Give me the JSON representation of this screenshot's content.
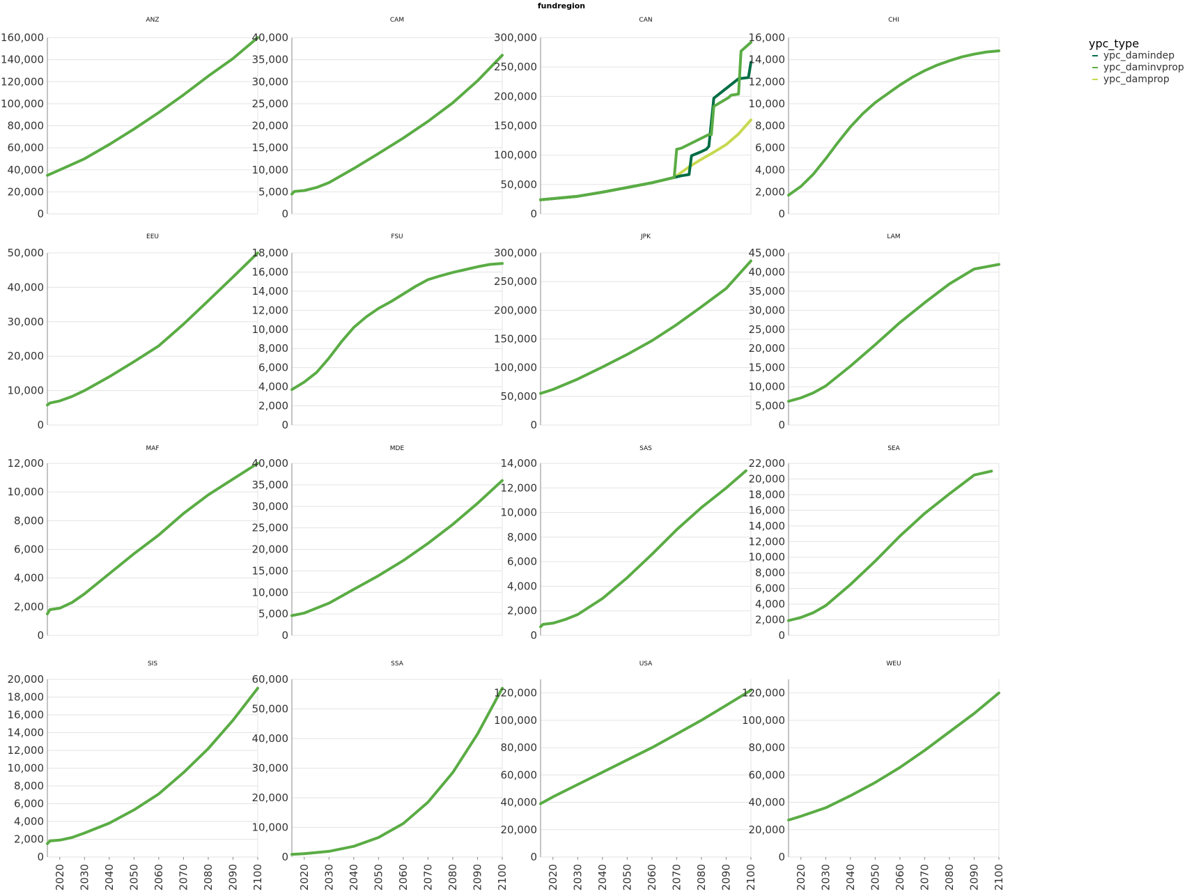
{
  "main_title": "fundregion",
  "legend": {
    "title": "ypc_type",
    "entries": [
      {
        "label": "ypc_damindep",
        "color": "#006d44"
      },
      {
        "label": "ypc_daminvprop",
        "color": "#5aac44"
      },
      {
        "label": "ypc_damprop",
        "color": "#c7d94f"
      }
    ]
  },
  "chart_data": [
    {
      "type": "line",
      "title": "ANZ",
      "x_ticks": [
        2020,
        2030,
        2040,
        2050,
        2060,
        2070,
        2080,
        2090,
        2100
      ],
      "xlim": [
        2015,
        2100
      ],
      "y_ticks": [
        0,
        20000,
        40000,
        60000,
        80000,
        100000,
        120000,
        140000,
        160000
      ],
      "ylim": [
        0,
        160000
      ],
      "series": [
        {
          "name": "ypc_daminvprop",
          "x": [
            2015,
            2020,
            2030,
            2040,
            2050,
            2060,
            2070,
            2080,
            2090,
            2100
          ],
          "y": [
            35000,
            40000,
            50000,
            63000,
            77000,
            92000,
            108000,
            125000,
            141000,
            160000
          ]
        }
      ]
    },
    {
      "type": "line",
      "title": "CAM",
      "x_ticks": [
        2020,
        2030,
        2040,
        2050,
        2060,
        2070,
        2080,
        2090,
        2100
      ],
      "xlim": [
        2015,
        2100
      ],
      "y_ticks": [
        0,
        5000,
        10000,
        15000,
        20000,
        25000,
        30000,
        35000,
        40000
      ],
      "ylim": [
        0,
        40000
      ],
      "series": [
        {
          "name": "ypc_daminvprop",
          "x": [
            2015,
            2016,
            2020,
            2025,
            2030,
            2040,
            2050,
            2060,
            2070,
            2080,
            2090,
            2100
          ],
          "y": [
            4500,
            5100,
            5300,
            6000,
            7100,
            10300,
            13700,
            17200,
            21000,
            25200,
            30200,
            36000
          ]
        }
      ]
    },
    {
      "type": "line",
      "title": "CAN",
      "x_ticks": [
        2020,
        2030,
        2040,
        2050,
        2060,
        2070,
        2080,
        2090,
        2100
      ],
      "xlim": [
        2015,
        2100
      ],
      "y_ticks": [
        0,
        50000,
        100000,
        150000,
        200000,
        250000,
        300000
      ],
      "ylim": [
        0,
        300000
      ],
      "series": [
        {
          "name": "ypc_damprop",
          "x": [
            2015,
            2030,
            2040,
            2050,
            2060,
            2069,
            2075,
            2080,
            2085,
            2090,
            2095,
            2100
          ],
          "y": [
            24000,
            30000,
            37000,
            45000,
            53000,
            62000,
            80000,
            93000,
            105000,
            118000,
            136000,
            160000
          ]
        },
        {
          "name": "ypc_damindep",
          "x": [
            2015,
            2030,
            2040,
            2050,
            2060,
            2069,
            2070,
            2071,
            2072,
            2075,
            2076,
            2080,
            2082,
            2083,
            2085,
            2095,
            2099,
            2100
          ],
          "y": [
            24000,
            30000,
            37000,
            45000,
            53000,
            62000,
            63000,
            64000,
            65000,
            67000,
            99000,
            106000,
            110000,
            115000,
            197000,
            230000,
            232000,
            258000
          ]
        },
        {
          "name": "ypc_daminvprop",
          "x": [
            2015,
            2030,
            2040,
            2050,
            2060,
            2069,
            2070,
            2071,
            2072,
            2083,
            2084,
            2085,
            2091,
            2092,
            2095,
            2096,
            2100
          ],
          "y": [
            24000,
            30000,
            37000,
            45000,
            53000,
            62000,
            110000,
            111000,
            112000,
            135000,
            135000,
            183000,
            198000,
            202000,
            204000,
            277000,
            292000
          ]
        }
      ]
    },
    {
      "type": "line",
      "title": "CHI",
      "x_ticks": [
        2020,
        2030,
        2040,
        2050,
        2060,
        2070,
        2080,
        2090,
        2100
      ],
      "xlim": [
        2015,
        2100
      ],
      "y_ticks": [
        0,
        2000,
        4000,
        6000,
        8000,
        10000,
        12000,
        14000,
        16000
      ],
      "ylim": [
        0,
        16000
      ],
      "series": [
        {
          "name": "ypc_daminvprop",
          "x": [
            2015,
            2020,
            2025,
            2030,
            2035,
            2040,
            2045,
            2050,
            2055,
            2060,
            2065,
            2070,
            2075,
            2080,
            2085,
            2090,
            2095,
            2100
          ],
          "y": [
            1700,
            2500,
            3600,
            5000,
            6500,
            7900,
            9100,
            10100,
            10900,
            11700,
            12400,
            13000,
            13500,
            13900,
            14250,
            14500,
            14700,
            14800
          ]
        }
      ]
    },
    {
      "type": "line",
      "title": "EEU",
      "x_ticks": [
        2020,
        2030,
        2040,
        2050,
        2060,
        2070,
        2080,
        2090,
        2100
      ],
      "xlim": [
        2015,
        2100
      ],
      "y_ticks": [
        0,
        10000,
        20000,
        30000,
        40000,
        50000
      ],
      "ylim": [
        0,
        50000
      ],
      "series": [
        {
          "name": "ypc_daminvprop",
          "x": [
            2015,
            2016,
            2020,
            2025,
            2030,
            2040,
            2050,
            2060,
            2070,
            2080,
            2090,
            2100
          ],
          "y": [
            5800,
            6400,
            7000,
            8300,
            10000,
            14000,
            18400,
            23000,
            29300,
            36100,
            43000,
            50000
          ]
        }
      ]
    },
    {
      "type": "line",
      "title": "FSU",
      "x_ticks": [
        2020,
        2030,
        2040,
        2050,
        2060,
        2070,
        2080,
        2090,
        2100
      ],
      "xlim": [
        2015,
        2100
      ],
      "y_ticks": [
        0,
        2000,
        4000,
        6000,
        8000,
        10000,
        12000,
        14000,
        16000,
        18000
      ],
      "ylim": [
        0,
        18000
      ],
      "series": [
        {
          "name": "ypc_daminvprop",
          "x": [
            2015,
            2020,
            2025,
            2030,
            2035,
            2040,
            2045,
            2050,
            2055,
            2060,
            2065,
            2070,
            2075,
            2080,
            2085,
            2090,
            2095,
            2100
          ],
          "y": [
            3700,
            4500,
            5500,
            7000,
            8700,
            10200,
            11300,
            12200,
            12900,
            13700,
            14500,
            15200,
            15600,
            15950,
            16250,
            16550,
            16800,
            16900
          ]
        }
      ]
    },
    {
      "type": "line",
      "title": "JPK",
      "x_ticks": [
        2020,
        2030,
        2040,
        2050,
        2060,
        2070,
        2080,
        2090,
        2100
      ],
      "xlim": [
        2015,
        2100
      ],
      "y_ticks": [
        0,
        50000,
        100000,
        150000,
        200000,
        250000,
        300000
      ],
      "ylim": [
        0,
        300000
      ],
      "series": [
        {
          "name": "ypc_daminvprop",
          "x": [
            2015,
            2020,
            2030,
            2040,
            2050,
            2060,
            2070,
            2080,
            2090,
            2100
          ],
          "y": [
            55000,
            62000,
            80000,
            101000,
            123000,
            147000,
            175000,
            206000,
            238000,
            286000
          ]
        }
      ]
    },
    {
      "type": "line",
      "title": "LAM",
      "x_ticks": [
        2020,
        2030,
        2040,
        2050,
        2060,
        2070,
        2080,
        2090,
        2100
      ],
      "xlim": [
        2015,
        2100
      ],
      "y_ticks": [
        0,
        5000,
        10000,
        15000,
        20000,
        25000,
        30000,
        35000,
        40000,
        45000
      ],
      "ylim": [
        0,
        45000
      ],
      "series": [
        {
          "name": "ypc_daminvprop",
          "x": [
            2015,
            2020,
            2025,
            2030,
            2040,
            2050,
            2060,
            2070,
            2080,
            2090,
            2100
          ],
          "y": [
            6200,
            7100,
            8400,
            10200,
            15400,
            21000,
            26800,
            32000,
            36900,
            40800,
            42000
          ]
        }
      ]
    },
    {
      "type": "line",
      "title": "MAF",
      "x_ticks": [
        2020,
        2030,
        2040,
        2050,
        2060,
        2070,
        2080,
        2090,
        2100
      ],
      "xlim": [
        2015,
        2100
      ],
      "y_ticks": [
        0,
        2000,
        4000,
        6000,
        8000,
        10000,
        12000
      ],
      "ylim": [
        0,
        12000
      ],
      "series": [
        {
          "name": "ypc_daminvprop",
          "x": [
            2015,
            2016,
            2020,
            2025,
            2030,
            2040,
            2050,
            2060,
            2070,
            2080,
            2090,
            2100
          ],
          "y": [
            1500,
            1800,
            1900,
            2300,
            2900,
            4300,
            5700,
            7000,
            8500,
            9800,
            10900,
            12000
          ]
        }
      ]
    },
    {
      "type": "line",
      "title": "MDE",
      "x_ticks": [
        2020,
        2030,
        2040,
        2050,
        2060,
        2070,
        2080,
        2090,
        2100
      ],
      "xlim": [
        2015,
        2100
      ],
      "y_ticks": [
        0,
        5000,
        10000,
        15000,
        20000,
        25000,
        30000,
        35000,
        40000
      ],
      "ylim": [
        0,
        40000
      ],
      "series": [
        {
          "name": "ypc_daminvprop",
          "x": [
            2015,
            2020,
            2030,
            2040,
            2050,
            2060,
            2070,
            2080,
            2090,
            2100
          ],
          "y": [
            4600,
            5200,
            7500,
            10700,
            13900,
            17400,
            21400,
            25800,
            30700,
            36000
          ]
        }
      ]
    },
    {
      "type": "line",
      "title": "SAS",
      "x_ticks": [
        2020,
        2030,
        2040,
        2050,
        2060,
        2070,
        2080,
        2090,
        2100
      ],
      "xlim": [
        2015,
        2100
      ],
      "y_ticks": [
        0,
        2000,
        4000,
        6000,
        8000,
        10000,
        12000,
        14000
      ],
      "ylim": [
        0,
        14000
      ],
      "series": [
        {
          "name": "ypc_daminvprop",
          "x": [
            2015,
            2016,
            2020,
            2025,
            2030,
            2040,
            2050,
            2060,
            2070,
            2080,
            2090,
            2098
          ],
          "y": [
            700,
            900,
            1000,
            1300,
            1700,
            3000,
            4700,
            6600,
            8600,
            10400,
            12000,
            13400
          ]
        }
      ]
    },
    {
      "type": "line",
      "title": "SEA",
      "x_ticks": [
        2020,
        2030,
        2040,
        2050,
        2060,
        2070,
        2080,
        2090,
        2100
      ],
      "xlim": [
        2015,
        2100
      ],
      "y_ticks": [
        0,
        2000,
        4000,
        6000,
        8000,
        10000,
        12000,
        14000,
        16000,
        18000,
        20000,
        22000
      ],
      "ylim": [
        0,
        22000
      ],
      "series": [
        {
          "name": "ypc_daminvprop",
          "x": [
            2015,
            2020,
            2025,
            2030,
            2040,
            2050,
            2060,
            2070,
            2080,
            2090,
            2097
          ],
          "y": [
            1900,
            2300,
            2900,
            3800,
            6500,
            9500,
            12700,
            15600,
            18100,
            20500,
            21000
          ]
        }
      ]
    },
    {
      "type": "line",
      "title": "SIS",
      "x_ticks": [
        2020,
        2030,
        2040,
        2050,
        2060,
        2070,
        2080,
        2090,
        2100
      ],
      "xlim": [
        2015,
        2100
      ],
      "y_ticks": [
        0,
        2000,
        4000,
        6000,
        8000,
        10000,
        12000,
        14000,
        16000,
        18000,
        20000
      ],
      "ylim": [
        0,
        20000
      ],
      "series": [
        {
          "name": "ypc_daminvprop",
          "x": [
            2015,
            2016,
            2020,
            2025,
            2030,
            2040,
            2050,
            2060,
            2070,
            2080,
            2090,
            2100
          ],
          "y": [
            1500,
            1800,
            1900,
            2200,
            2700,
            3800,
            5300,
            7100,
            9500,
            12200,
            15400,
            19000
          ]
        }
      ]
    },
    {
      "type": "line",
      "title": "SSA",
      "x_ticks": [
        2020,
        2030,
        2040,
        2050,
        2060,
        2070,
        2080,
        2090,
        2100
      ],
      "xlim": [
        2015,
        2100
      ],
      "y_ticks": [
        0,
        10000,
        20000,
        30000,
        40000,
        50000,
        60000
      ],
      "ylim": [
        0,
        60000
      ],
      "series": [
        {
          "name": "ypc_daminvprop",
          "x": [
            2015,
            2020,
            2030,
            2040,
            2050,
            2060,
            2070,
            2080,
            2090,
            2100
          ],
          "y": [
            900,
            1100,
            1900,
            3600,
            6600,
            11300,
            18500,
            28500,
            41500,
            57000
          ]
        }
      ]
    },
    {
      "type": "line",
      "title": "USA",
      "x_ticks": [
        2020,
        2030,
        2040,
        2050,
        2060,
        2070,
        2080,
        2090,
        2100
      ],
      "xlim": [
        2015,
        2100
      ],
      "y_ticks": [
        0,
        20000,
        40000,
        60000,
        80000,
        100000,
        120000
      ],
      "ylim": [
        0,
        130000
      ],
      "series": [
        {
          "name": "ypc_daminvprop",
          "x": [
            2015,
            2020,
            2030,
            2040,
            2050,
            2060,
            2070,
            2080,
            2090,
            2100
          ],
          "y": [
            39000,
            44000,
            53000,
            62000,
            71000,
            80000,
            90000,
            100000,
            111000,
            122000
          ]
        }
      ]
    },
    {
      "type": "line",
      "title": "WEU",
      "x_ticks": [
        2020,
        2030,
        2040,
        2050,
        2060,
        2070,
        2080,
        2090,
        2100
      ],
      "xlim": [
        2015,
        2100
      ],
      "y_ticks": [
        0,
        20000,
        40000,
        60000,
        80000,
        100000,
        120000
      ],
      "ylim": [
        0,
        130000
      ],
      "series": [
        {
          "name": "ypc_daminvprop",
          "x": [
            2015,
            2020,
            2030,
            2040,
            2050,
            2060,
            2070,
            2080,
            2090,
            2100
          ],
          "y": [
            27000,
            29800,
            36000,
            44800,
            54500,
            65500,
            78000,
            91500,
            105000,
            120000
          ]
        }
      ]
    }
  ]
}
